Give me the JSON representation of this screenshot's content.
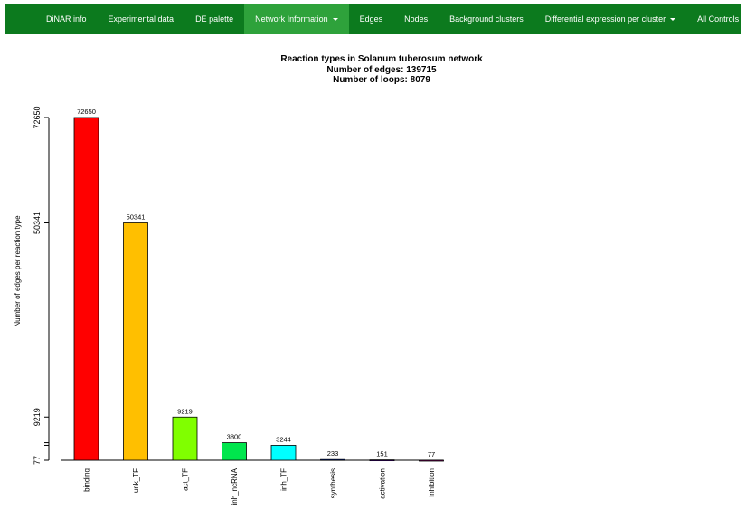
{
  "nav": {
    "items": [
      {
        "label": "DiNAR info",
        "active": false,
        "dropdown": false
      },
      {
        "label": "Experimental data",
        "active": false,
        "dropdown": false
      },
      {
        "label": "DE palette",
        "active": false,
        "dropdown": false
      },
      {
        "label": "Network Information",
        "active": true,
        "dropdown": true
      },
      {
        "label": "Edges",
        "active": false,
        "dropdown": false
      },
      {
        "label": "Nodes",
        "active": false,
        "dropdown": false
      },
      {
        "label": "Background clusters",
        "active": false,
        "dropdown": false
      },
      {
        "label": "Differential expression per cluster",
        "active": false,
        "dropdown": true
      },
      {
        "label": "All Controls",
        "active": false,
        "dropdown": false
      }
    ],
    "bg_color": "#0c7a1e",
    "active_color": "#2ea23b"
  },
  "chart_data": {
    "type": "bar",
    "title": "Reaction types in Solanum tuberosum network",
    "subtitle_lines": [
      "Number of edges: 139715",
      "Number of loops: 8079"
    ],
    "xlabel": "",
    "ylabel": "Number of edges per reaction type",
    "categories": [
      "binding",
      "unk_TF",
      "act_TF",
      "inh_ncRNA",
      "inh_TF",
      "synthesis",
      "activation",
      "inhibition"
    ],
    "values": [
      72650,
      50341,
      9219,
      3800,
      3244,
      233,
      151,
      77
    ],
    "data_labels": [
      "72650",
      "50341",
      "9219",
      "3800",
      "3244",
      "233",
      "151",
      "77"
    ],
    "colors": [
      "#ff0000",
      "#ffbf00",
      "#80ff00",
      "#00e64d",
      "#00ffff",
      "#0040ff",
      "#8000ff",
      "#ff00bf"
    ],
    "ytick_values": [
      77,
      9219,
      50341,
      72650
    ],
    "ytick_labels": [
      "77",
      "9219",
      "50341",
      "72650"
    ],
    "yminor_ticks": [
      3244,
      3800
    ],
    "ylim": [
      77,
      72650
    ],
    "grid": false,
    "legend": "none"
  }
}
